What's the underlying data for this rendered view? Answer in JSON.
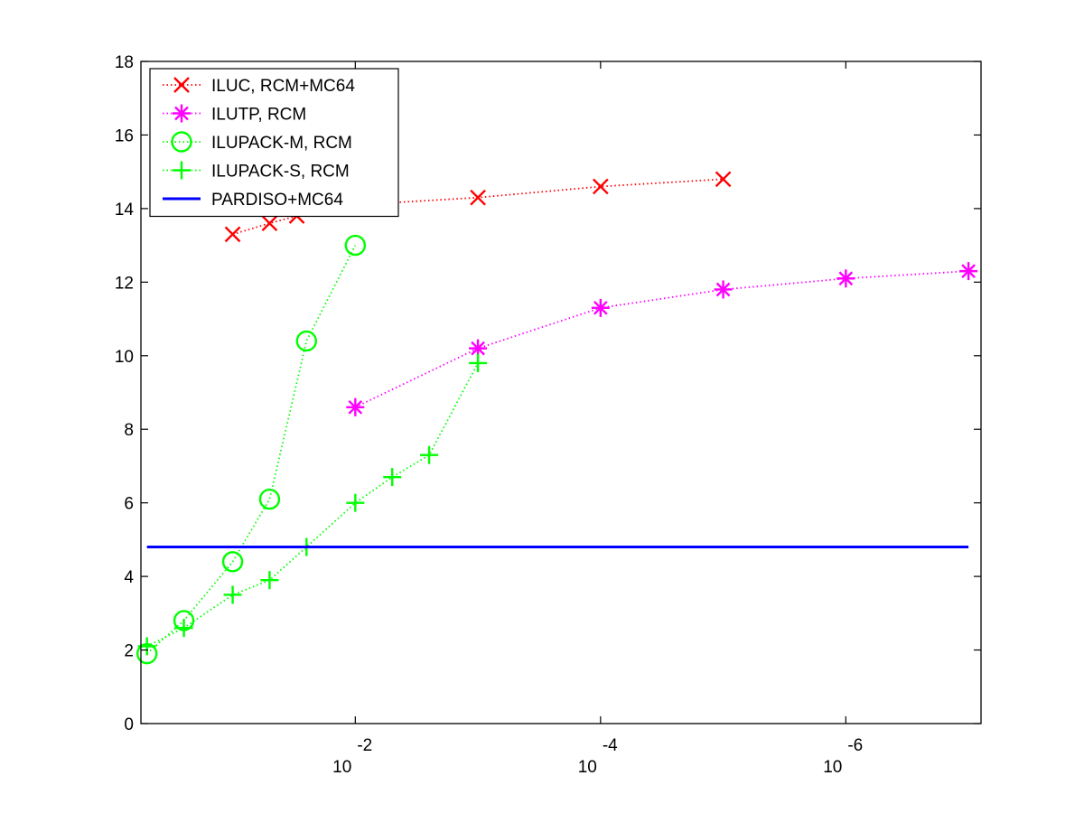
{
  "chart_data": {
    "type": "line",
    "title": "",
    "xlabel": "",
    "ylabel": "",
    "x_scale": "log",
    "x_reversed": true,
    "xlim": [
      0.56,
      7.9e-08
    ],
    "ylim": [
      0,
      18
    ],
    "yticks": [
      0,
      2,
      4,
      6,
      8,
      10,
      12,
      14,
      16,
      18
    ],
    "xticks": [
      {
        "value": 0.01,
        "base": "10",
        "exp": "-2"
      },
      {
        "value": 0.0001,
        "base": "10",
        "exp": "-4"
      },
      {
        "value": 1e-06,
        "base": "10",
        "exp": "-6"
      }
    ],
    "grid": false,
    "legend_position": "top-left",
    "series": [
      {
        "name": "ILUC, RCM+MC64",
        "color": "#ff0000",
        "marker": "x",
        "line": "dotted",
        "x": [
          0.1,
          0.05,
          0.03,
          0.01,
          0.001,
          0.0001,
          1e-05
        ],
        "y": [
          13.3,
          13.6,
          13.8,
          14.1,
          14.3,
          14.6,
          14.8
        ]
      },
      {
        "name": "ILUTP, RCM",
        "color": "#ff00ff",
        "marker": "asterisk",
        "line": "dotted",
        "x": [
          0.01,
          0.001,
          0.0001,
          1e-05,
          1e-06,
          1e-07
        ],
        "y": [
          8.6,
          10.2,
          11.3,
          11.8,
          12.1,
          12.3
        ]
      },
      {
        "name": "ILUPACK-M, RCM",
        "color": "#00ff00",
        "marker": "circle",
        "line": "dotted",
        "x": [
          0.5,
          0.25,
          0.1,
          0.05,
          0.025,
          0.01
        ],
        "y": [
          1.9,
          2.8,
          4.4,
          6.1,
          10.4,
          13.0
        ]
      },
      {
        "name": "ILUPACK-S, RCM",
        "color": "#00ff00",
        "marker": "plus",
        "line": "dotted",
        "x": [
          0.5,
          0.25,
          0.1,
          0.05,
          0.025,
          0.01,
          0.005,
          0.0025,
          0.001
        ],
        "y": [
          2.1,
          2.6,
          3.5,
          3.9,
          4.8,
          6.0,
          6.7,
          7.3,
          9.8
        ]
      },
      {
        "name": "PARDISO+MC64",
        "color": "#0000ff",
        "marker": "none",
        "line": "solid",
        "x": [
          0.5,
          1e-07
        ],
        "y": [
          4.8,
          4.8
        ]
      }
    ]
  }
}
